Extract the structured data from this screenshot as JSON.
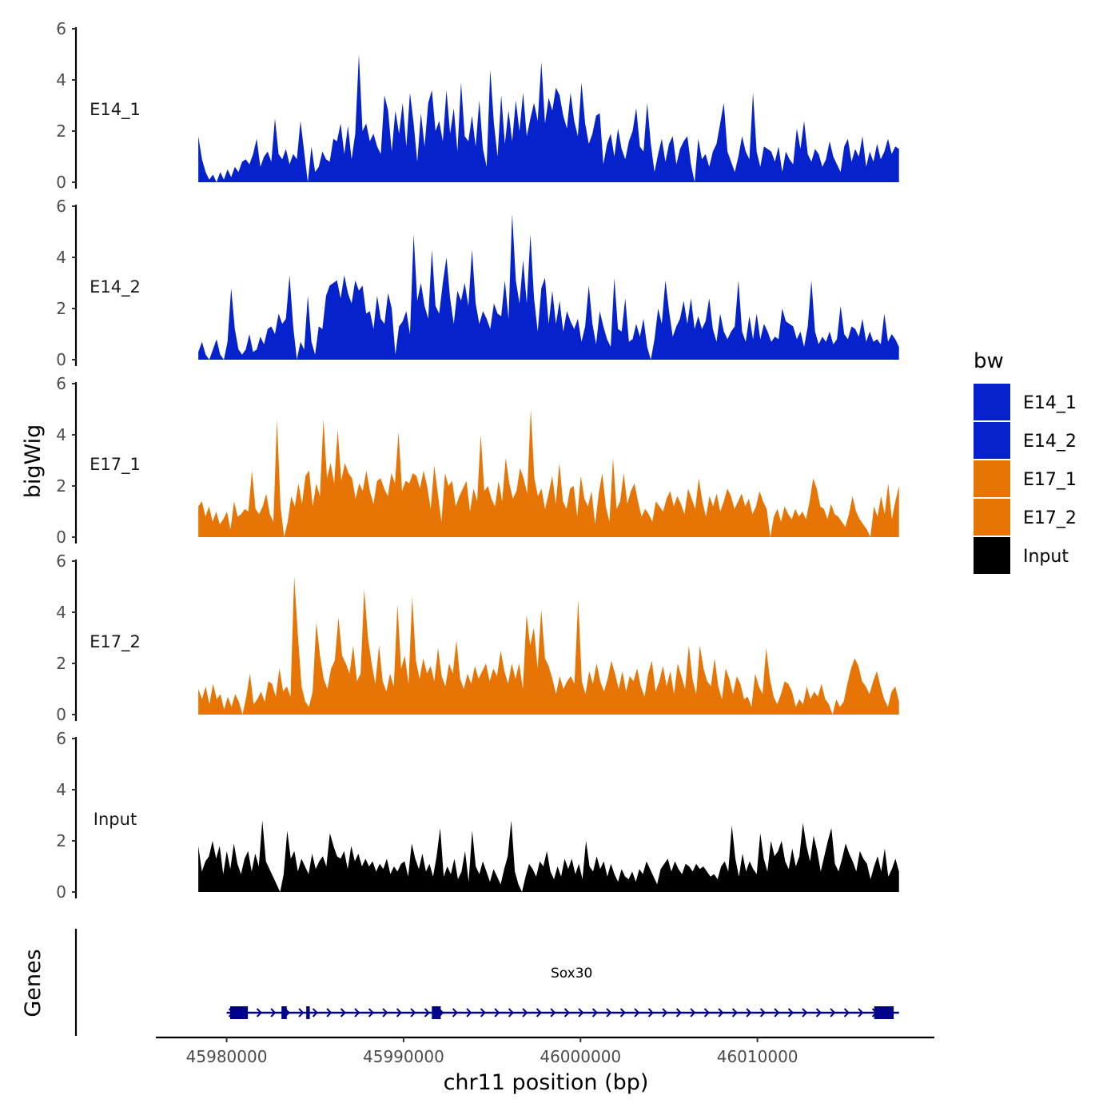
{
  "chart_data": {
    "type": "area",
    "ylabel": "bigWig",
    "xlabel": "chr11 position (bp)",
    "genes_label": "Genes",
    "legend": {
      "title": "bw",
      "position": "right",
      "items": [
        {
          "name": "E14_1",
          "color": "#0522CC"
        },
        {
          "name": "E14_2",
          "color": "#0522CC"
        },
        {
          "name": "E17_1",
          "color": "#E67505"
        },
        {
          "name": "E17_2",
          "color": "#E67505"
        },
        {
          "name": "Input",
          "color": "#000000"
        }
      ]
    },
    "x_range": [
      45976000,
      46020000
    ],
    "x_ticks": [
      45980000,
      45990000,
      46000000,
      46010000
    ],
    "x_tick_labels": [
      "45980000",
      "45990000",
      "46000000",
      "46010000"
    ],
    "ylim": [
      0,
      6
    ],
    "y_ticks": [
      0,
      2,
      4,
      6
    ],
    "series": [
      {
        "name": "E14_1",
        "color": "#0522CC",
        "x_start": 45978400,
        "x_end": 46018000,
        "values": [
          1.8,
          0.9,
          0.4,
          0.1,
          0.3,
          0,
          0.4,
          0.1,
          0.5,
          0.2,
          0.6,
          0.4,
          0.8,
          0.9,
          0.7,
          1.1,
          1.7,
          0.6,
          1.0,
          1.2,
          0.8,
          2.5,
          1.1,
          0.9,
          1.3,
          0.7,
          1.1,
          0.9,
          2.4,
          1.2,
          0,
          1.4,
          0.4,
          0.6,
          1.2,
          0.9,
          0.8,
          1.7,
          1.6,
          2.3,
          1.1,
          2.2,
          0.9,
          1.9,
          5.0,
          2.0,
          2.3,
          1.6,
          1.9,
          1.4,
          1.1,
          3.4,
          2.8,
          1.2,
          2.8,
          1.9,
          3.1,
          1.4,
          3.5,
          2.3,
          0.8,
          2.7,
          1.4,
          3.1,
          3.6,
          2.0,
          2.4,
          1.6,
          3.6,
          1.9,
          2.9,
          1.2,
          3.9,
          1.8,
          1.6,
          2.6,
          1.4,
          3.2,
          1.3,
          0.6,
          4.4,
          2.3,
          1.0,
          3.4,
          1.5,
          2.8,
          1.6,
          3.2,
          2.0,
          3.5,
          1.8,
          2.5,
          3.1,
          2.4,
          4.7,
          2.3,
          3.3,
          2.8,
          3.7,
          3.4,
          2.6,
          2.1,
          3.5,
          2.4,
          1.8,
          3.9,
          2.3,
          1.5,
          1.9,
          2.6,
          2.7,
          0.7,
          1.5,
          1.9,
          1.0,
          2.1,
          1.3,
          0.9,
          1.6,
          2.0,
          2.9,
          1.4,
          1.2,
          3.1,
          1.5,
          0.4,
          1.1,
          1.7,
          0.8,
          1.5,
          1.8,
          0.7,
          1.3,
          1.6,
          1.8,
          0.7,
          0,
          1.7,
          0.9,
          1.1,
          0.6,
          1.2,
          1.5,
          2.3,
          3.1,
          1.2,
          0.8,
          0.4,
          1.0,
          1.8,
          1.2,
          0.9,
          3.5,
          1.2,
          0.6,
          1.4,
          1.3,
          1.2,
          0.8,
          1.4,
          0.4,
          1.2,
          0.9,
          0.7,
          2.1,
          1.3,
          2.4,
          1.1,
          0.8,
          1.3,
          1.1,
          0.6,
          0.9,
          1.6,
          1.0,
          0.7,
          0.4,
          1.4,
          1.7,
          0.8,
          1.3,
          1.0,
          1.8,
          0.6,
          1.2,
          0.8,
          1.5,
          0.9,
          1.2,
          1.7,
          1.1,
          1.4,
          1.3
        ]
      },
      {
        "name": "E14_2",
        "color": "#0522CC",
        "x_start": 45978400,
        "x_end": 46018000,
        "values": [
          0.3,
          0.7,
          0.2,
          0,
          0.4,
          0.8,
          0.2,
          0,
          0.7,
          2.8,
          1.2,
          0.4,
          0.2,
          0.4,
          1.0,
          0.3,
          0.4,
          0.9,
          0.6,
          1.2,
          1.3,
          1.0,
          1.8,
          1.4,
          1.6,
          3.3,
          1.3,
          0,
          0.7,
          0.4,
          2.5,
          0.7,
          0.2,
          1.3,
          1.2,
          2.5,
          2.9,
          3.0,
          3.1,
          2.4,
          3.3,
          2.6,
          2.2,
          3.1,
          2.7,
          2.9,
          1.8,
          1.9,
          1.2,
          2.5,
          1.6,
          1.4,
          2.6,
          2.0,
          0.2,
          1.3,
          1.5,
          1.9,
          1.0,
          4.9,
          2.3,
          3.0,
          2.1,
          1.6,
          4.3,
          2.1,
          1.8,
          3.0,
          4.0,
          2.4,
          1.4,
          2.7,
          2.3,
          3.0,
          2.1,
          4.3,
          2.2,
          1.4,
          1.9,
          1.6,
          1.2,
          2.2,
          1.8,
          1.7,
          3.1,
          1.6,
          5.7,
          3.1,
          2.2,
          3.9,
          2.2,
          4.9,
          2.4,
          1.1,
          2.8,
          3.2,
          1.4,
          2.7,
          1.4,
          2.3,
          1.1,
          1.9,
          1.5,
          1.2,
          1.6,
          0.7,
          1.3,
          2.9,
          1.4,
          0.6,
          1.9,
          1.3,
          0.8,
          0.5,
          3.2,
          1.2,
          1.1,
          2.4,
          0.7,
          0.8,
          1.4,
          0.9,
          1.6,
          0.5,
          0,
          0.8,
          2.0,
          1.4,
          3.1,
          1.9,
          0.9,
          1.3,
          1.6,
          2.3,
          1.4,
          2.4,
          1.2,
          1.7,
          1.2,
          1.5,
          2.4,
          1.2,
          0.7,
          1.8,
          1.1,
          0.8,
          1.1,
          1.3,
          3.1,
          1.1,
          0.7,
          1.7,
          0.8,
          1.8,
          0.8,
          1.4,
          1.1,
          0.7,
          0.9,
          0.8,
          2.0,
          1.5,
          1.4,
          1.3,
          0.8,
          1.1,
          0.5,
          1.3,
          3.1,
          1.1,
          0.6,
          0.9,
          0.7,
          1.1,
          0.6,
          0.8,
          2.1,
          1.0,
          0.8,
          1.3,
          1.2,
          0.9,
          1.6,
          0.7,
          1.1,
          0.7,
          0.8,
          0.6,
          1.8,
          0.7,
          1.0,
          0.8,
          0.5
        ]
      },
      {
        "name": "E17_1",
        "color": "#E67505",
        "x_start": 45978400,
        "x_end": 46018000,
        "values": [
          1.2,
          1.4,
          0.8,
          1.2,
          0.6,
          1.0,
          0.5,
          0.7,
          1.0,
          0.3,
          1.4,
          0.8,
          0.9,
          1.1,
          1.0,
          2.6,
          1.1,
          0.9,
          1.2,
          1.7,
          0.9,
          0.6,
          4.6,
          1.2,
          0,
          0.6,
          1.6,
          1.2,
          2.1,
          1.3,
          2.4,
          2.6,
          1.2,
          2.1,
          1.6,
          4.6,
          2.3,
          2.9,
          2.1,
          4.2,
          2.2,
          2.9,
          2.5,
          2.3,
          1.5,
          2.1,
          1.8,
          2.6,
          1.8,
          1.3,
          2.2,
          2.3,
          1.9,
          1.6,
          2.5,
          2.1,
          4.1,
          1.8,
          2.2,
          2.1,
          2.5,
          2.4,
          1.9,
          2.6,
          2.0,
          1.1,
          2.8,
          1.7,
          0.6,
          2.5,
          2.0,
          2.2,
          1.2,
          1.6,
          1.9,
          2.2,
          1.0,
          1.9,
          1.4,
          4.0,
          1.8,
          2.0,
          1.5,
          1.2,
          2.2,
          1.4,
          3.1,
          2.1,
          1.5,
          1.8,
          2.7,
          2.3,
          1.7,
          5.0,
          2.3,
          1.6,
          1.9,
          1.1,
          1.7,
          2.4,
          1.3,
          2.9,
          1.4,
          1.1,
          1.9,
          2.0,
          0.8,
          2.4,
          1.5,
          1.2,
          1.8,
          0.5,
          1.7,
          2.5,
          1.2,
          0.6,
          3.1,
          1.1,
          1.4,
          2.5,
          1.3,
          1.8,
          2.1,
          1.4,
          0.8,
          1.1,
          0.9,
          0.6,
          1.4,
          1.2,
          1.0,
          1.5,
          1.8,
          1.2,
          1.6,
          1.3,
          0.9,
          1.9,
          1.5,
          1.1,
          2.3,
          1.4,
          0.8,
          1.6,
          1.2,
          1.7,
          1.0,
          1.4,
          1.9,
          1.6,
          1.1,
          1.4,
          1.7,
          1.2,
          1.5,
          0.9,
          1.2,
          1.8,
          1.4,
          1.1,
          0,
          0.8,
          1.1,
          0.6,
          1.2,
          0.9,
          0.7,
          1.1,
          0.8,
          1.0,
          0.7,
          1.4,
          2.3,
          1.9,
          1.2,
          1.1,
          0.7,
          1.3,
          0.9,
          0.8,
          0.6,
          0.4,
          0.9,
          1.6,
          1.0,
          0.7,
          0.5,
          0.3,
          0,
          1.2,
          0.8,
          1.6,
          0.9,
          2.1,
          0.7,
          1.4,
          2.0
        ]
      },
      {
        "name": "E17_2",
        "color": "#E67505",
        "x_start": 45978400,
        "x_end": 46018000,
        "values": [
          1.0,
          0.6,
          1.1,
          0.4,
          1.2,
          0.6,
          0.8,
          0.2,
          0.7,
          0.3,
          0.8,
          0.5,
          0,
          0.7,
          1.6,
          0.4,
          0.6,
          0.9,
          0.5,
          1.3,
          1.2,
          0.7,
          1.8,
          0.9,
          1.1,
          0.7,
          5.4,
          3.1,
          1.1,
          0.5,
          0.3,
          0.9,
          3.6,
          2.3,
          1.4,
          1.0,
          1.8,
          2.1,
          3.8,
          2.3,
          2.0,
          1.6,
          2.7,
          1.3,
          1.6,
          4.9,
          3.0,
          2.0,
          1.2,
          2.7,
          1.3,
          0.9,
          1.6,
          1.1,
          4.3,
          1.8,
          2.3,
          1.2,
          4.6,
          2.1,
          1.4,
          2.2,
          1.6,
          1.9,
          1.3,
          2.6,
          1.5,
          1.1,
          2.0,
          1.6,
          2.9,
          1.4,
          1.0,
          1.6,
          1.2,
          1.9,
          1.4,
          1.7,
          2.0,
          1.3,
          1.8,
          1.5,
          2.5,
          1.7,
          1.2,
          2.0,
          1.4,
          2.0,
          1.0,
          3.9,
          2.7,
          3.4,
          1.8,
          4.1,
          2.2,
          1.9,
          1.4,
          0.8,
          1.5,
          1.0,
          1.3,
          1.5,
          1.2,
          4.5,
          1.3,
          0.8,
          1.7,
          1.2,
          2.0,
          1.3,
          0.9,
          1.4,
          2.1,
          1.6,
          1.0,
          1.7,
          0.9,
          1.5,
          1.3,
          1.8,
          1.1,
          0.7,
          1.6,
          2.1,
          0.9,
          1.3,
          1.9,
          1.1,
          1.7,
          0.8,
          2.0,
          1.5,
          1.0,
          2.7,
          1.4,
          0.8,
          2.7,
          1.8,
          1.3,
          1.1,
          2.2,
          1.1,
          0.6,
          1.8,
          1.4,
          0.8,
          1.5,
          1.2,
          0.6,
          0.7,
          0.3,
          1.6,
          1.1,
          0.8,
          2.6,
          1.4,
          0.7,
          0.4,
          0.8,
          1.3,
          1.2,
          0.9,
          0.3,
          0.6,
          0.4,
          1.1,
          0.6,
          0.9,
          0.7,
          1.2,
          0.6,
          0.4,
          0,
          0.6,
          0.3,
          0.5,
          1.2,
          1.8,
          2.2,
          1.9,
          1.3,
          1.1,
          0.8,
          1.3,
          1.7,
          1.1,
          0.6,
          0.3,
          0.9,
          1.1,
          0.5
        ]
      },
      {
        "name": "Input",
        "color": "#000000",
        "x_start": 45978400,
        "x_end": 46018000,
        "values": [
          1.8,
          0.8,
          1.2,
          1.4,
          2.0,
          1.3,
          1.8,
          0.7,
          1.6,
          0.9,
          1.9,
          1.1,
          0.7,
          1.3,
          1.6,
          0.8,
          1.5,
          1.0,
          2.8,
          1.2,
          0.9,
          0.6,
          0.3,
          0,
          0.7,
          2.4,
          1.3,
          1.6,
          0.8,
          1.3,
          1.0,
          0.7,
          1.5,
          0.9,
          1.2,
          1.4,
          1.0,
          2.3,
          1.8,
          1.4,
          1.3,
          1.6,
          0.9,
          1.8,
          1.2,
          1.5,
          1.0,
          1.3,
          1.0,
          1.2,
          0.8,
          1.1,
          0.9,
          1.3,
          0.7,
          1.0,
          0.8,
          1.1,
          1.2,
          0.6,
          1.9,
          1.3,
          0.9,
          1.5,
          0.8,
          1.1,
          0.6,
          1.4,
          2.5,
          0.6,
          1.0,
          0.7,
          1.3,
          0.5,
          0.8,
          1.6,
          0.4,
          2.4,
          1.0,
          0.7,
          1.2,
          0.8,
          0.4,
          0.9,
          0.6,
          0.3,
          0.9,
          1.4,
          2.8,
          0.8,
          0.3,
          0,
          0.6,
          1.1,
          0.9,
          0.6,
          1.2,
          1.0,
          1.6,
          0.8,
          0.5,
          1.0,
          0.6,
          1.3,
          0.9,
          1.3,
          0.7,
          1.1,
          0.5,
          2.0,
          1.0,
          0.8,
          1.4,
          0.9,
          1.2,
          0.6,
          1.1,
          0.7,
          0.4,
          0.9,
          0.6,
          0.5,
          0.8,
          0.4,
          0.9,
          0.7,
          1.2,
          0.9,
          0.6,
          0.3,
          0.9,
          1.1,
          1.3,
          0.8,
          1.2,
          0.9,
          0.7,
          1.1,
          1.0,
          0.8,
          1.1,
          0.9,
          1.0,
          0.8,
          0.6,
          0.7,
          0.5,
          1.0,
          1.2,
          0.8,
          2.6,
          1.3,
          0.6,
          1.5,
          0.8,
          1.2,
          0.9,
          0.7,
          2.3,
          1.3,
          0.8,
          2.0,
          1.4,
          1.6,
          2.0,
          1.2,
          0.9,
          1.7,
          1.0,
          1.4,
          2.7,
          1.8,
          1.2,
          2.2,
          1.6,
          0.8,
          1.4,
          2.0,
          2.5,
          1.1,
          0.8,
          1.3,
          1.9,
          1.5,
          1.2,
          0.8,
          1.6,
          1.3,
          1.1,
          0.5,
          1.0,
          1.4,
          0.8,
          1.7,
          0.6,
          0.9,
          1.3,
          0.8
        ]
      }
    ],
    "genes": [
      {
        "name": "Sox30",
        "color": "#00008B",
        "strand": "+",
        "start": 45980000,
        "end": 46018000,
        "exons": [
          [
            45980200,
            45981200
          ],
          [
            45983100,
            45983400
          ],
          [
            45984500,
            45984700
          ],
          [
            45991600,
            45992100
          ],
          [
            46016600,
            46017700
          ]
        ]
      }
    ]
  }
}
